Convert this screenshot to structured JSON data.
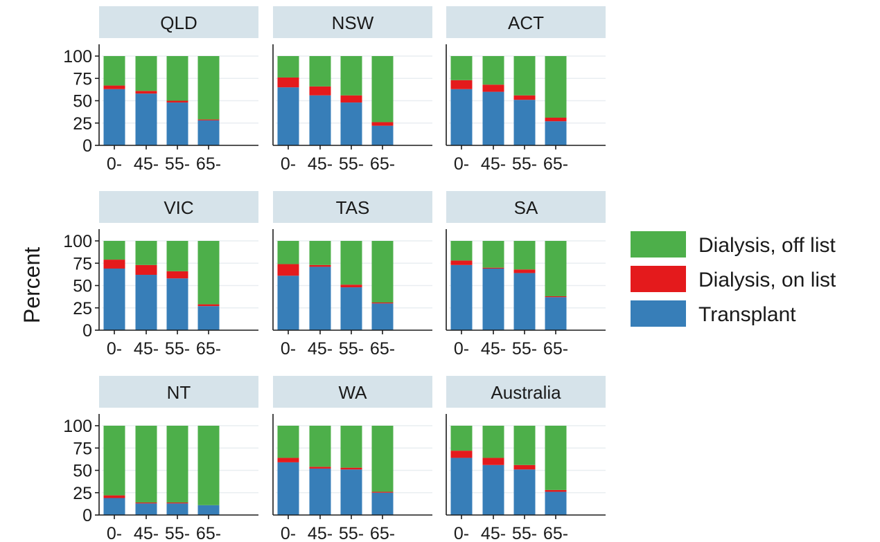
{
  "chart_data": {
    "type": "bar",
    "stacked": true,
    "ylabel": "Percent",
    "xlabel": "",
    "ylim": [
      0,
      100
    ],
    "yticks": [
      0,
      25,
      50,
      75,
      100
    ],
    "categories": [
      "0-",
      "45-",
      "55-",
      "65-"
    ],
    "legend": {
      "position": "right",
      "entries": [
        "Dialysis, off list",
        "Dialysis, on list",
        "Transplant"
      ]
    },
    "colors": {
      "Dialysis, off list": "#4DAF4A",
      "Dialysis, on list": "#E41A1C",
      "Transplant": "#377EB8",
      "strip": "#D6E3EA"
    },
    "grid": true,
    "panels": [
      {
        "title": "QLD",
        "series": [
          {
            "name": "Transplant",
            "values": [
              63,
              58,
              48,
              28
            ]
          },
          {
            "name": "Dialysis, on list",
            "values": [
              4,
              3,
              2,
              1
            ]
          },
          {
            "name": "Dialysis, off list",
            "values": [
              33,
              39,
              50,
              71
            ]
          }
        ]
      },
      {
        "title": "NSW",
        "series": [
          {
            "name": "Transplant",
            "values": [
              65,
              56,
              48,
              22
            ]
          },
          {
            "name": "Dialysis, on list",
            "values": [
              11,
              10,
              8,
              4
            ]
          },
          {
            "name": "Dialysis, off list",
            "values": [
              24,
              34,
              44,
              74
            ]
          }
        ]
      },
      {
        "title": "ACT",
        "series": [
          {
            "name": "Transplant",
            "values": [
              63,
              60,
              51,
              27
            ]
          },
          {
            "name": "Dialysis, on list",
            "values": [
              10,
              8,
              5,
              4
            ]
          },
          {
            "name": "Dialysis, off list",
            "values": [
              27,
              32,
              44,
              69
            ]
          }
        ]
      },
      {
        "title": "VIC",
        "series": [
          {
            "name": "Transplant",
            "values": [
              69,
              62,
              58,
              27
            ]
          },
          {
            "name": "Dialysis, on list",
            "values": [
              10,
              11,
              8,
              2
            ]
          },
          {
            "name": "Dialysis, off list",
            "values": [
              21,
              27,
              34,
              71
            ]
          }
        ]
      },
      {
        "title": "TAS",
        "series": [
          {
            "name": "Transplant",
            "values": [
              61,
              71,
              48,
              30
            ]
          },
          {
            "name": "Dialysis, on list",
            "values": [
              13,
              2,
              3,
              1
            ]
          },
          {
            "name": "Dialysis, off list",
            "values": [
              26,
              27,
              49,
              69
            ]
          }
        ]
      },
      {
        "title": "SA",
        "series": [
          {
            "name": "Transplant",
            "values": [
              73,
              69,
              64,
              37
            ]
          },
          {
            "name": "Dialysis, on list",
            "values": [
              5,
              1,
              4,
              1
            ]
          },
          {
            "name": "Dialysis, off list",
            "values": [
              22,
              30,
              32,
              62
            ]
          }
        ]
      },
      {
        "title": "NT",
        "series": [
          {
            "name": "Transplant",
            "values": [
              19,
              13,
              13,
              11
            ]
          },
          {
            "name": "Dialysis, on list",
            "values": [
              3,
              1,
              1,
              0
            ]
          },
          {
            "name": "Dialysis, off list",
            "values": [
              78,
              86,
              86,
              89
            ]
          }
        ]
      },
      {
        "title": "WA",
        "series": [
          {
            "name": "Transplant",
            "values": [
              59,
              52,
              51,
              25
            ]
          },
          {
            "name": "Dialysis, on list",
            "values": [
              5,
              2,
              2,
              1
            ]
          },
          {
            "name": "Dialysis, off list",
            "values": [
              36,
              46,
              47,
              74
            ]
          }
        ]
      },
      {
        "title": "Australia",
        "series": [
          {
            "name": "Transplant",
            "values": [
              64,
              56,
              51,
              26
            ]
          },
          {
            "name": "Dialysis, on list",
            "values": [
              8,
              8,
              5,
              2
            ]
          },
          {
            "name": "Dialysis, off list",
            "values": [
              28,
              36,
              44,
              72
            ]
          }
        ]
      }
    ]
  }
}
